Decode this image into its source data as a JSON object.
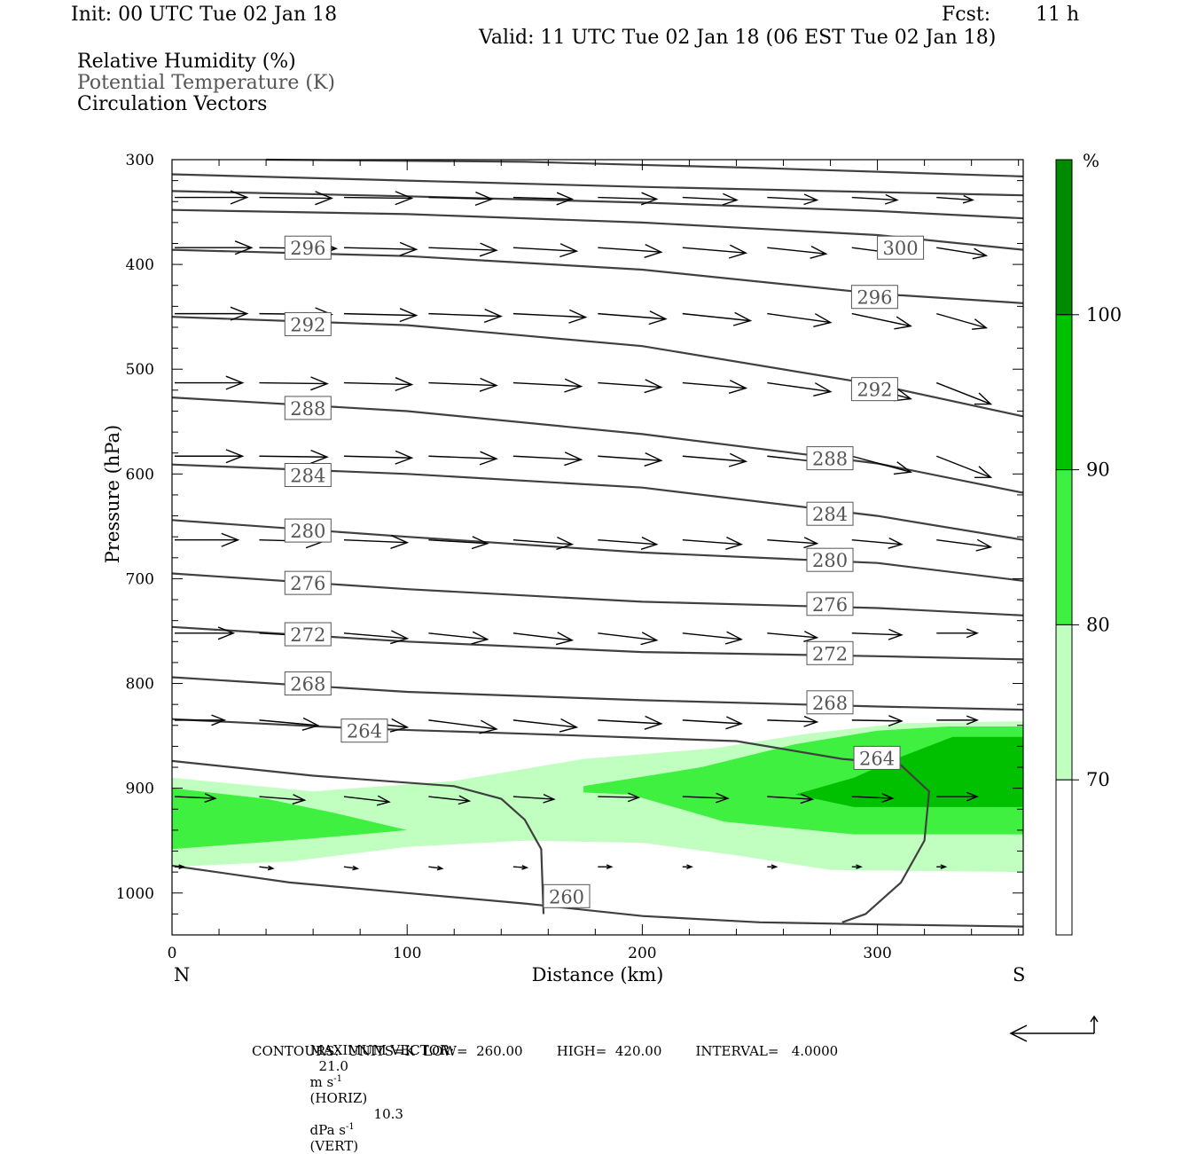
{
  "header": {
    "init": "Init: 00 UTC Tue 02 Jan 18",
    "fcst_label": "Fcst:",
    "fcst_value": "11 h",
    "valid": "Valid: 11 UTC Tue 02 Jan 18 (06 EST Tue 02 Jan 18)"
  },
  "fields": {
    "rh": "Relative Humidity (%)",
    "theta": "Potential Temperature (K)",
    "vectors": "Circulation Vectors"
  },
  "footer": {
    "max_vector_label": "MAXIMUM VECTOR:",
    "horiz_value": "21.0",
    "horiz_units": "m s",
    "horiz_tag": "(HORIZ)",
    "vert_value": "10.3",
    "vert_units": "dPa s",
    "vert_tag": "(VERT)",
    "exponent": "-1",
    "contours": "CONTOURS:  UNITS=K  LOW=  260.00        HIGH=  420.00        INTERVAL=   4.0000"
  },
  "colors": {
    "rh_70_80": "#c0ffc0",
    "rh_80_90": "#40f040",
    "rh_90_100": "#00c000",
    "rh_100": "#008a00",
    "contour": "#404040"
  },
  "chart_data": {
    "type": "cross-section",
    "xlabel": "Distance (km)",
    "ylabel": "Pressure (hPa)",
    "xlim": [
      0,
      362
    ],
    "ylim": [
      300,
      1040
    ],
    "y_scale": "linear, inverted",
    "x_ticks": [
      "0",
      "100",
      "200",
      "300"
    ],
    "x_tick_values": [
      0,
      100,
      200,
      300
    ],
    "y_ticks": [
      "300",
      "400",
      "500",
      "600",
      "700",
      "800",
      "900",
      "1000"
    ],
    "y_tick_values": [
      300,
      400,
      500,
      600,
      700,
      800,
      900,
      1000
    ],
    "left_end": "N",
    "right_end": "S",
    "colorbar": {
      "unit": "%",
      "labels": [
        "100",
        "90",
        "80",
        "70"
      ],
      "levels": [
        100,
        90,
        80,
        70
      ],
      "colors": [
        "#008a00",
        "#00c000",
        "#40f040",
        "#c0ffc0",
        "#ffffff"
      ]
    },
    "rh_shading": [
      {
        "level": 70,
        "color": "#c0ffc0",
        "polygon": [
          [
            0,
            890
          ],
          [
            60,
            903
          ],
          [
            120,
            893
          ],
          [
            175,
            872
          ],
          [
            230,
            862
          ],
          [
            270,
            848
          ],
          [
            310,
            838
          ],
          [
            362,
            836
          ],
          [
            362,
            980
          ],
          [
            280,
            978
          ],
          [
            240,
            964
          ],
          [
            200,
            952
          ],
          [
            150,
            950
          ],
          [
            100,
            956
          ],
          [
            50,
            970
          ],
          [
            0,
            975
          ]
        ]
      },
      {
        "level": 80,
        "color": "#40f040",
        "polygon": [
          [
            0,
            900
          ],
          [
            40,
            910
          ],
          [
            70,
            924
          ],
          [
            100,
            940
          ],
          [
            60,
            948
          ],
          [
            0,
            958
          ]
        ]
      },
      {
        "level": 80,
        "color": "#40f040",
        "polygon": [
          [
            175,
            898
          ],
          [
            225,
            880
          ],
          [
            265,
            858
          ],
          [
            300,
            845
          ],
          [
            330,
            841
          ],
          [
            362,
            841
          ],
          [
            362,
            944
          ],
          [
            290,
            944
          ],
          [
            235,
            932
          ],
          [
            195,
            906
          ],
          [
            175,
            904
          ]
        ]
      },
      {
        "level": 90,
        "color": "#00c000",
        "polygon": [
          [
            265,
            906
          ],
          [
            290,
            890
          ],
          [
            310,
            870
          ],
          [
            332,
            851
          ],
          [
            362,
            851
          ],
          [
            362,
            918
          ],
          [
            290,
            918
          ]
        ]
      }
    ],
    "theta_contours": [
      {
        "label": "300",
        "points": [
          [
            40,
            300
          ],
          [
            150,
            302
          ],
          [
            250,
            308
          ],
          [
            362,
            316
          ]
        ],
        "label_at": [
          300,
          384
        ]
      },
      {
        "label": "",
        "points": [
          [
            0,
            314
          ],
          [
            100,
            320
          ],
          [
            200,
            326
          ],
          [
            300,
            331
          ],
          [
            362,
            334
          ]
        ],
        "label_at": null
      },
      {
        "label": "",
        "points": [
          [
            0,
            330
          ],
          [
            100,
            335
          ],
          [
            200,
            341
          ],
          [
            300,
            349
          ],
          [
            362,
            356
          ]
        ],
        "label_at": null
      },
      {
        "label": "",
        "points": [
          [
            0,
            348
          ],
          [
            100,
            352
          ],
          [
            200,
            360
          ],
          [
            300,
            372
          ],
          [
            362,
            386
          ]
        ],
        "label_at": null
      },
      {
        "label": "296",
        "points": [
          [
            0,
            386
          ],
          [
            100,
            392
          ],
          [
            200,
            405
          ],
          [
            300,
            428
          ],
          [
            362,
            437
          ]
        ],
        "label_at": [
          48,
          384
        ]
      },
      {
        "label": "296",
        "points": [
          [
            300,
            428
          ]
        ],
        "label_at": [
          289,
          431
        ]
      },
      {
        "label": "292",
        "points": [
          [
            0,
            450
          ],
          [
            100,
            458
          ],
          [
            200,
            478
          ],
          [
            300,
            515
          ],
          [
            362,
            545
          ]
        ],
        "label_at": [
          48,
          457
        ]
      },
      {
        "label": "292",
        "points": [
          [
            300,
            515
          ]
        ],
        "label_at": [
          289,
          519
        ]
      },
      {
        "label": "288",
        "points": [
          [
            0,
            527
          ],
          [
            100,
            540
          ],
          [
            200,
            562
          ],
          [
            300,
            590
          ],
          [
            362,
            618
          ]
        ],
        "label_at": [
          48,
          537
        ]
      },
      {
        "label": "288",
        "points": [
          [
            300,
            590
          ]
        ],
        "label_at": [
          270,
          585
        ]
      },
      {
        "label": "284",
        "points": [
          [
            0,
            591
          ],
          [
            100,
            600
          ],
          [
            200,
            613
          ],
          [
            300,
            640
          ],
          [
            362,
            663
          ]
        ],
        "label_at": [
          48,
          601
        ]
      },
      {
        "label": "284",
        "points": [
          [
            300,
            640
          ]
        ],
        "label_at": [
          270,
          638
        ]
      },
      {
        "label": "280",
        "points": [
          [
            0,
            644
          ],
          [
            100,
            660
          ],
          [
            200,
            675
          ],
          [
            300,
            685
          ],
          [
            362,
            702
          ]
        ],
        "label_at": [
          48,
          654
        ]
      },
      {
        "label": "280",
        "points": [
          [
            300,
            685
          ]
        ],
        "label_at": [
          270,
          682
        ]
      },
      {
        "label": "276",
        "points": [
          [
            0,
            695
          ],
          [
            100,
            710
          ],
          [
            200,
            722
          ],
          [
            300,
            728
          ],
          [
            362,
            735
          ]
        ],
        "label_at": [
          48,
          704
        ]
      },
      {
        "label": "276",
        "points": [
          [
            300,
            728
          ]
        ],
        "label_at": [
          270,
          724
        ]
      },
      {
        "label": "272",
        "points": [
          [
            0,
            746
          ],
          [
            100,
            760
          ],
          [
            200,
            770
          ],
          [
            300,
            774
          ],
          [
            362,
            777
          ]
        ],
        "label_at": [
          48,
          753
        ]
      },
      {
        "label": "272",
        "points": [
          [
            300,
            774
          ]
        ],
        "label_at": [
          270,
          771
        ]
      },
      {
        "label": "268",
        "points": [
          [
            0,
            794
          ],
          [
            100,
            808
          ],
          [
            200,
            816
          ],
          [
            300,
            822
          ],
          [
            362,
            825
          ]
        ],
        "label_at": [
          48,
          800
        ]
      },
      {
        "label": "268",
        "points": [
          [
            300,
            822
          ]
        ],
        "label_at": [
          270,
          818
        ]
      },
      {
        "label": "264",
        "points": [
          [
            0,
            834
          ],
          [
            80,
            843
          ],
          [
            150,
            848
          ],
          [
            240,
            855
          ],
          [
            285,
            872
          ],
          [
            300,
            875
          ],
          [
            310,
            878
          ],
          [
            322,
            903
          ],
          [
            320,
            950
          ],
          [
            310,
            990
          ],
          [
            295,
            1020
          ],
          [
            285,
            1028
          ]
        ],
        "label_at": [
          72,
          845
        ]
      },
      {
        "label": "264",
        "points": [
          [
            290,
            875
          ]
        ],
        "label_at": [
          290,
          871
        ]
      },
      {
        "label": "260",
        "points": [
          [
            0,
            974
          ],
          [
            50,
            990
          ],
          [
            100,
            1000
          ],
          [
            150,
            1010
          ],
          [
            200,
            1022
          ],
          [
            250,
            1028
          ],
          [
            300,
            1030
          ],
          [
            362,
            1032
          ]
        ],
        "label_at": [
          158,
          1003
        ]
      },
      {
        "label": "",
        "points": [
          [
            0,
            874
          ],
          [
            60,
            888
          ],
          [
            120,
            898
          ],
          [
            140,
            910
          ],
          [
            150,
            930
          ],
          [
            157,
            958
          ],
          [
            158,
            1020
          ]
        ],
        "label_at": null
      }
    ],
    "vector_rows": [
      {
        "p": 336,
        "xs": [
          0,
          36,
          72,
          108,
          144,
          180,
          216,
          252,
          288,
          324
        ],
        "u": [
          32,
          32,
          30,
          28,
          26,
          26,
          24,
          22,
          20,
          16
        ],
        "w": [
          0,
          1,
          1,
          2,
          2,
          2,
          3,
          3,
          3,
          3
        ]
      },
      {
        "p": 384,
        "xs": [
          0,
          36,
          72,
          108,
          144,
          180,
          216,
          252,
          288,
          324
        ],
        "u": [
          34,
          34,
          32,
          30,
          28,
          28,
          28,
          26,
          24,
          22
        ],
        "w": [
          0,
          1,
          2,
          3,
          4,
          5,
          6,
          7,
          8,
          9
        ]
      },
      {
        "p": 447,
        "xs": [
          0,
          36,
          72,
          108,
          144,
          180,
          216,
          252,
          288,
          324
        ],
        "u": [
          32,
          32,
          32,
          32,
          32,
          30,
          30,
          28,
          26,
          22
        ],
        "w": [
          0,
          1,
          2,
          3,
          4,
          6,
          8,
          10,
          14,
          16
        ]
      },
      {
        "p": 513,
        "xs": [
          0,
          36,
          72,
          108,
          144,
          180,
          216,
          252,
          288,
          324
        ],
        "u": [
          30,
          30,
          30,
          30,
          30,
          28,
          28,
          28,
          26,
          24
        ],
        "w": [
          0,
          1,
          2,
          3,
          4,
          5,
          6,
          10,
          18,
          24
        ]
      },
      {
        "p": 583,
        "xs": [
          0,
          36,
          72,
          108,
          144,
          180,
          216,
          252,
          288,
          324
        ],
        "u": [
          30,
          30,
          30,
          30,
          30,
          28,
          28,
          28,
          26,
          24
        ],
        "w": [
          0,
          1,
          2,
          3,
          4,
          5,
          6,
          8,
          18,
          24
        ]
      },
      {
        "p": 663,
        "xs": [
          0,
          36,
          72,
          108,
          144,
          180,
          216,
          252,
          288,
          324
        ],
        "u": [
          28,
          28,
          28,
          26,
          26,
          26,
          26,
          22,
          22,
          24
        ],
        "w": [
          0,
          2,
          3,
          4,
          5,
          5,
          5,
          4,
          5,
          8
        ]
      },
      {
        "p": 752,
        "xs": [
          0,
          36,
          72,
          108,
          144,
          180,
          216,
          252,
          288,
          324
        ],
        "u": [
          26,
          28,
          28,
          26,
          26,
          26,
          26,
          22,
          22,
          18
        ],
        "w": [
          0,
          4,
          6,
          7,
          8,
          8,
          7,
          5,
          2,
          0
        ]
      },
      {
        "p": 835,
        "xs": [
          0,
          36,
          72,
          108,
          144,
          180,
          216,
          252,
          288,
          324
        ],
        "u": [
          22,
          26,
          28,
          30,
          28,
          28,
          26,
          22,
          22,
          18
        ],
        "w": [
          0,
          6,
          8,
          10,
          8,
          4,
          4,
          2,
          1,
          0
        ]
      },
      {
        "p": 908,
        "xs": [
          0,
          36,
          72,
          108,
          144,
          180,
          216,
          252,
          288,
          324
        ],
        "u": [
          18,
          20,
          20,
          18,
          18,
          18,
          20,
          20,
          18,
          18
        ],
        "w": [
          2,
          4,
          6,
          5,
          3,
          1,
          2,
          3,
          2,
          0
        ]
      },
      {
        "p": 975,
        "xs": [
          0,
          36,
          72,
          108,
          144,
          180,
          216,
          252,
          288,
          324
        ],
        "u": [
          4,
          6,
          6,
          6,
          6,
          6,
          4,
          4,
          4,
          4
        ],
        "w": [
          0,
          2,
          2,
          2,
          1,
          0,
          0,
          0,
          0,
          0
        ]
      }
    ],
    "max_vector_horiz": 21.0,
    "max_vector_vert": 10.3
  }
}
